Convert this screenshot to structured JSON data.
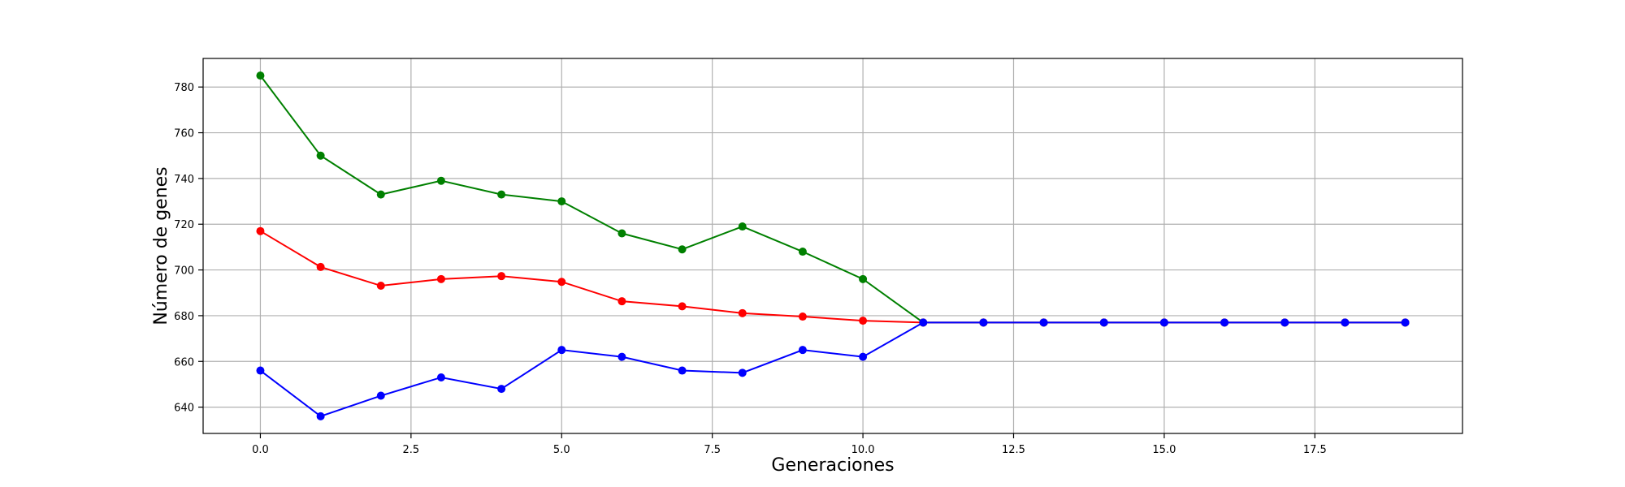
{
  "chart_data": {
    "type": "line",
    "title": "",
    "xlabel": "Generaciones",
    "ylabel": "Número de genes",
    "xlim": [
      -0.95,
      19.95
    ],
    "ylim": [
      628.5,
      792.5
    ],
    "xticks": [
      0.0,
      2.5,
      5.0,
      7.5,
      10.0,
      12.5,
      15.0,
      17.5
    ],
    "xtick_labels": [
      "0.0",
      "2.5",
      "5.0",
      "7.5",
      "10.0",
      "12.5",
      "15.0",
      "17.5"
    ],
    "yticks": [
      640,
      660,
      680,
      700,
      720,
      740,
      760,
      780
    ],
    "ytick_labels": [
      "640",
      "660",
      "680",
      "700",
      "720",
      "740",
      "760",
      "780"
    ],
    "grid": true,
    "legend": "none",
    "series": [
      {
        "color": "#008000",
        "x": [
          0,
          1,
          2,
          3,
          4,
          5,
          6,
          7,
          8,
          9,
          10,
          11,
          12,
          13,
          14,
          15,
          16,
          17,
          18,
          19
        ],
        "values": [
          785,
          750,
          733,
          739,
          733,
          730,
          716,
          709,
          719,
          708,
          696,
          677,
          677,
          677,
          677,
          677,
          677,
          677,
          677,
          677
        ]
      },
      {
        "color": "#ff0000",
        "x": [
          0,
          1,
          2,
          3,
          4,
          5,
          6,
          7,
          8,
          9,
          10,
          11,
          12,
          13,
          14,
          15,
          16,
          17,
          18,
          19
        ],
        "values": [
          717,
          701.3,
          693.1,
          696,
          697.3,
          694.8,
          686.3,
          684.1,
          681.1,
          679.6,
          677.8,
          677,
          677,
          677,
          677,
          677,
          677,
          677,
          677,
          677
        ]
      },
      {
        "color": "#0000ff",
        "x": [
          0,
          1,
          2,
          3,
          4,
          5,
          6,
          7,
          8,
          9,
          10,
          11,
          12,
          13,
          14,
          15,
          16,
          17,
          18,
          19
        ],
        "values": [
          656,
          636,
          645,
          653,
          648,
          665,
          662,
          656,
          655,
          665,
          662,
          677,
          677,
          677,
          677,
          677,
          677,
          677,
          677,
          677
        ]
      }
    ]
  }
}
